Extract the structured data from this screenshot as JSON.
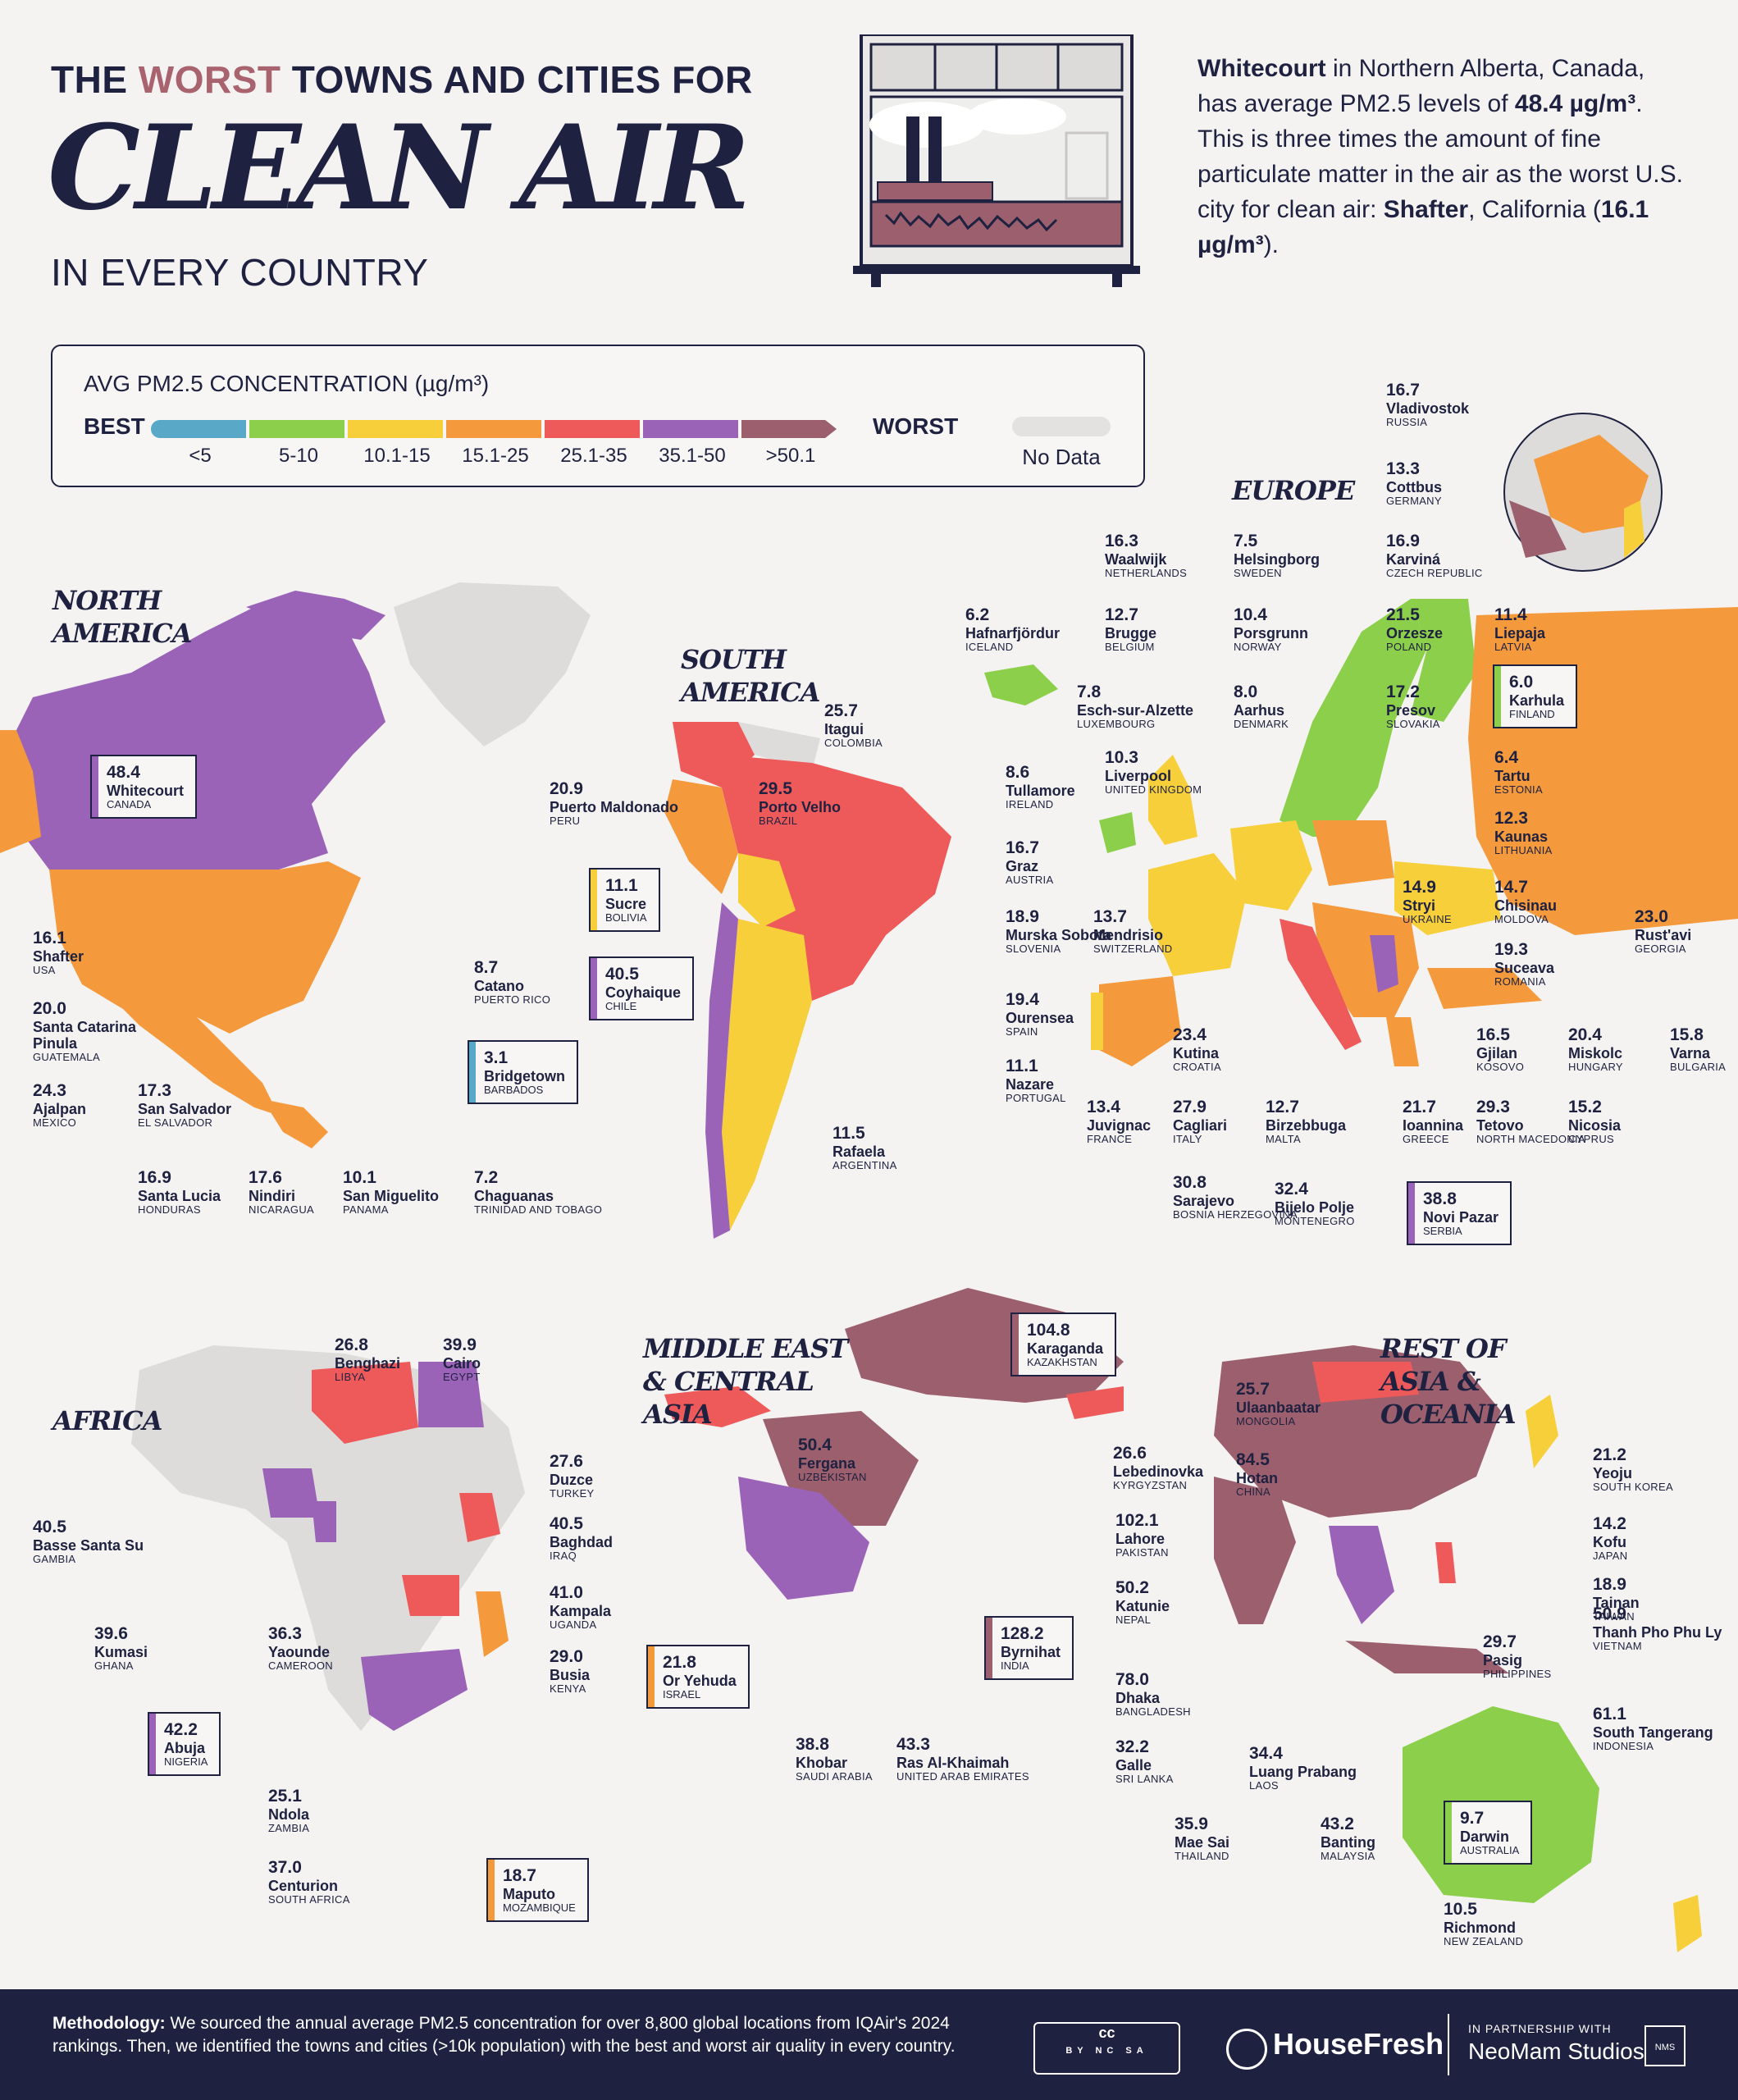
{
  "header": {
    "title_pre": "THE ",
    "title_highlight": "WORST",
    "title_post": " TOWNS AND CITIES FOR",
    "title_big": "CLEAN AIR",
    "title_sub": "IN EVERY COUNTRY"
  },
  "intro": {
    "p1_bold": "Whitecourt",
    "p1": " in Northern Alberta, Canada, has average PM2.5 levels of ",
    "p1_value": "48.4 µg/m³",
    "p2": ". This is three times the amount of fine particulate matter in the air as the worst U.S. city for clean air: ",
    "p2_bold": "Shafter",
    "p3": ", California (",
    "p3_value": "16.1 µg/m³",
    "p4": ")."
  },
  "legend": {
    "title": "AVG PM2.5 CONCENTRATION (µg/m³)",
    "best": "BEST",
    "worst": "WORST",
    "no_data": "No Data",
    "bins": [
      {
        "label": "<5",
        "color": "#5aa8c8"
      },
      {
        "label": "5-10",
        "color": "#8ccf4a"
      },
      {
        "label": "10.1-15",
        "color": "#f7cf3a"
      },
      {
        "label": "15.1-25",
        "color": "#f49a3c"
      },
      {
        "label": "25.1-35",
        "color": "#ee5a5a"
      },
      {
        "label": "35.1-50",
        "color": "#9b63b8"
      },
      {
        "label": ">50.1",
        "color": "#9b5f6d"
      }
    ]
  },
  "regions": {
    "north_america": "NORTH AMERICA",
    "south_america": "SOUTH AMERICA",
    "europe": "EUROPE",
    "africa": "AFRICA",
    "middle_east": "MIDDLE EAST & CENTRAL ASIA",
    "asia": "REST OF ASIA & OCEANIA"
  },
  "cities": [
    {
      "value": "48.4",
      "city": "Whitecourt",
      "country": "CANADA",
      "boxed": true,
      "color": "#9b63b8"
    },
    {
      "value": "16.1",
      "city": "Shafter",
      "country": "USA"
    },
    {
      "value": "20.0",
      "city": "Santa Catarina Pinula",
      "country": "GUATEMALA"
    },
    {
      "value": "24.3",
      "city": "Ajalpan",
      "country": "MEXICO"
    },
    {
      "value": "17.3",
      "city": "San Salvador",
      "country": "EL SALVADOR"
    },
    {
      "value": "16.9",
      "city": "Santa Lucia",
      "country": "HONDURAS"
    },
    {
      "value": "17.6",
      "city": "Nindiri",
      "country": "NICARAGUA"
    },
    {
      "value": "10.1",
      "city": "San Miguelito",
      "country": "PANAMA"
    },
    {
      "value": "8.7",
      "city": "Catano",
      "country": "PUERTO RICO"
    },
    {
      "value": "3.1",
      "city": "Bridgetown",
      "country": "BARBADOS",
      "boxed": true,
      "color": "#5aa8c8"
    },
    {
      "value": "7.2",
      "city": "Chaguanas",
      "country": "TRINIDAD AND TOBAGO"
    },
    {
      "value": "25.7",
      "city": "Itagui",
      "country": "COLOMBIA"
    },
    {
      "value": "29.5",
      "city": "Porto Velho",
      "country": "BRAZIL"
    },
    {
      "value": "20.9",
      "city": "Puerto Maldonado",
      "country": "PERU"
    },
    {
      "value": "11.1",
      "city": "Sucre",
      "country": "BOLIVIA",
      "boxed": true,
      "color": "#f7cf3a"
    },
    {
      "value": "40.5",
      "city": "Coyhaique",
      "country": "CHILE",
      "boxed": true,
      "color": "#9b63b8"
    },
    {
      "value": "11.5",
      "city": "Rafaela",
      "country": "ARGENTINA"
    },
    {
      "value": "16.7",
      "city": "Vladivostok",
      "country": "RUSSIA"
    },
    {
      "value": "13.3",
      "city": "Cottbus",
      "country": "GERMANY"
    },
    {
      "value": "16.3",
      "city": "Waalwijk",
      "country": "NETHERLANDS"
    },
    {
      "value": "7.5",
      "city": "Helsingborg",
      "country": "SWEDEN"
    },
    {
      "value": "16.9",
      "city": "Karviná",
      "country": "CZECH REPUBLIC"
    },
    {
      "value": "6.2",
      "city": "Hafnarfjördur",
      "country": "ICELAND"
    },
    {
      "value": "12.7",
      "city": "Brugge",
      "country": "BELGIUM"
    },
    {
      "value": "10.4",
      "city": "Porsgrunn",
      "country": "NORWAY"
    },
    {
      "value": "21.5",
      "city": "Orzesze",
      "country": "POLAND"
    },
    {
      "value": "11.4",
      "city": "Liepaja",
      "country": "LATVIA"
    },
    {
      "value": "7.8",
      "city": "Esch-sur-Alzette",
      "country": "LUXEMBOURG"
    },
    {
      "value": "8.0",
      "city": "Aarhus",
      "country": "DENMARK"
    },
    {
      "value": "17.2",
      "city": "Presov",
      "country": "SLOVAKIA"
    },
    {
      "value": "6.0",
      "city": "Karhula",
      "country": "FINLAND",
      "boxed": true,
      "color": "#8ccf4a"
    },
    {
      "value": "8.6",
      "city": "Tullamore",
      "country": "IRELAND"
    },
    {
      "value": "10.3",
      "city": "Liverpool",
      "country": "UNITED KINGDOM"
    },
    {
      "value": "6.4",
      "city": "Tartu",
      "country": "ESTONIA"
    },
    {
      "value": "12.3",
      "city": "Kaunas",
      "country": "LITHUANIA"
    },
    {
      "value": "16.7",
      "city": "Graz",
      "country": "AUSTRIA"
    },
    {
      "value": "14.9",
      "city": "Stryi",
      "country": "UKRAINE"
    },
    {
      "value": "14.7",
      "city": "Chisinau",
      "country": "MOLDOVA"
    },
    {
      "value": "18.9",
      "city": "Murska Sobota",
      "country": "SLOVENIA"
    },
    {
      "value": "13.7",
      "city": "Mendrisio",
      "country": "SWITZERLAND"
    },
    {
      "value": "19.3",
      "city": "Suceava",
      "country": "ROMANIA"
    },
    {
      "value": "23.0",
      "city": "Rust'avi",
      "country": "GEORGIA"
    },
    {
      "value": "19.4",
      "city": "Ourensea",
      "country": "SPAIN"
    },
    {
      "value": "23.4",
      "city": "Kutina",
      "country": "CROATIA"
    },
    {
      "value": "16.5",
      "city": "Gjilan",
      "country": "KOSOVO"
    },
    {
      "value": "20.4",
      "city": "Miskolc",
      "country": "HUNGARY"
    },
    {
      "value": "15.8",
      "city": "Varna",
      "country": "BULGARIA"
    },
    {
      "value": "11.1",
      "city": "Nazare",
      "country": "PORTUGAL"
    },
    {
      "value": "13.4",
      "city": "Juvignac",
      "country": "FRANCE"
    },
    {
      "value": "27.9",
      "city": "Cagliari",
      "country": "ITALY"
    },
    {
      "value": "12.7",
      "city": "Birzebbuga",
      "country": "MALTA"
    },
    {
      "value": "21.7",
      "city": "Ioannina",
      "country": "GREECE"
    },
    {
      "value": "29.3",
      "city": "Tetovo",
      "country": "NORTH MACEDONIA"
    },
    {
      "value": "15.2",
      "city": "Nicosia",
      "country": "CYPRUS"
    },
    {
      "value": "30.8",
      "city": "Sarajevo",
      "country": "BOSNIA HERZEGOVINA"
    },
    {
      "value": "32.4",
      "city": "Bijelo Polje",
      "country": "MONTENEGRO"
    },
    {
      "value": "38.8",
      "city": "Novi Pazar",
      "country": "SERBIA",
      "boxed": true,
      "color": "#9b63b8"
    },
    {
      "value": "26.8",
      "city": "Benghazi",
      "country": "LIBYA"
    },
    {
      "value": "39.9",
      "city": "Cairo",
      "country": "EGYPT"
    },
    {
      "value": "40.5",
      "city": "Basse Santa Su",
      "country": "GAMBIA"
    },
    {
      "value": "39.6",
      "city": "Kumasi",
      "country": "GHANA"
    },
    {
      "value": "36.3",
      "city": "Yaounde",
      "country": "CAMEROON"
    },
    {
      "value": "42.2",
      "city": "Abuja",
      "country": "NIGERIA",
      "boxed": true,
      "color": "#9b63b8"
    },
    {
      "value": "41.0",
      "city": "Kampala",
      "country": "UGANDA"
    },
    {
      "value": "29.0",
      "city": "Busia",
      "country": "KENYA"
    },
    {
      "value": "25.1",
      "city": "Ndola",
      "country": "ZAMBIA"
    },
    {
      "value": "37.0",
      "city": "Centurion",
      "country": "SOUTH AFRICA"
    },
    {
      "value": "18.7",
      "city": "Maputo",
      "country": "MOZAMBIQUE",
      "boxed": true,
      "color": "#f49a3c"
    },
    {
      "value": "104.8",
      "city": "Karaganda",
      "country": "KAZAKHSTAN",
      "boxed": true,
      "color": "#9b5f6d"
    },
    {
      "value": "50.4",
      "city": "Fergana",
      "country": "UZBEKISTAN"
    },
    {
      "value": "26.6",
      "city": "Lebedinovka",
      "country": "KYRGYZSTAN"
    },
    {
      "value": "27.6",
      "city": "Duzce",
      "country": "TURKEY"
    },
    {
      "value": "40.5",
      "city": "Baghdad",
      "country": "IRAQ"
    },
    {
      "value": "21.8",
      "city": "Or Yehuda",
      "country": "ISRAEL",
      "boxed": true,
      "color": "#f49a3c"
    },
    {
      "value": "38.8",
      "city": "Khobar",
      "country": "SAUDI ARABIA"
    },
    {
      "value": "43.3",
      "city": "Ras Al-Khaimah",
      "country": "UNITED ARAB EMIRATES"
    },
    {
      "value": "25.7",
      "city": "Ulaanbaatar",
      "country": "MONGOLIA"
    },
    {
      "value": "84.5",
      "city": "Hotan",
      "country": "CHINA"
    },
    {
      "value": "102.1",
      "city": "Lahore",
      "country": "PAKISTAN"
    },
    {
      "value": "50.2",
      "city": "Katunie",
      "country": "NEPAL"
    },
    {
      "value": "128.2",
      "city": "Byrnihat",
      "country": "INDIA",
      "boxed": true,
      "color": "#9b5f6d"
    },
    {
      "value": "78.0",
      "city": "Dhaka",
      "country": "BANGLADESH"
    },
    {
      "value": "32.2",
      "city": "Galle",
      "country": "SRI LANKA"
    },
    {
      "value": "35.9",
      "city": "Mae Sai",
      "country": "THAILAND"
    },
    {
      "value": "34.4",
      "city": "Luang Prabang",
      "country": "LAOS"
    },
    {
      "value": "43.2",
      "city": "Banting",
      "country": "MALAYSIA"
    },
    {
      "value": "21.2",
      "city": "Yeoju",
      "country": "SOUTH KOREA"
    },
    {
      "value": "14.2",
      "city": "Kofu",
      "country": "JAPAN"
    },
    {
      "value": "18.9",
      "city": "Tainan",
      "country": "TAIWAN"
    },
    {
      "value": "50.9",
      "city": "Thanh Pho Phu Ly",
      "country": "VIETNAM"
    },
    {
      "value": "29.7",
      "city": "Pasig",
      "country": "PHILIPPINES"
    },
    {
      "value": "61.1",
      "city": "South Tangerang",
      "country": "INDONESIA"
    },
    {
      "value": "9.7",
      "city": "Darwin",
      "country": "AUSTRALIA",
      "boxed": true,
      "color": "#8ccf4a"
    },
    {
      "value": "10.5",
      "city": "Richmond",
      "country": "NEW ZEALAND"
    }
  ],
  "footer": {
    "method_bold": "Methodology:",
    "method_text": " We sourced the annual average PM2.5 concentration for over 8,800 global locations from IQAir's 2024 rankings. Then, we identified the towns and cities (>10k population) with the best and worst air quality in every country.",
    "cc": "cc",
    "cc_sub": "BY NC SA",
    "brand": "HouseFresh",
    "partner_line1": "IN PARTNERSHIP WITH",
    "partner_line2": "NeoMam Studios",
    "partner_logo": "NMS"
  },
  "colors": {
    "ink": "#1e2140",
    "land_gray": "#dddcda",
    "bg": "#f4f3f1"
  }
}
